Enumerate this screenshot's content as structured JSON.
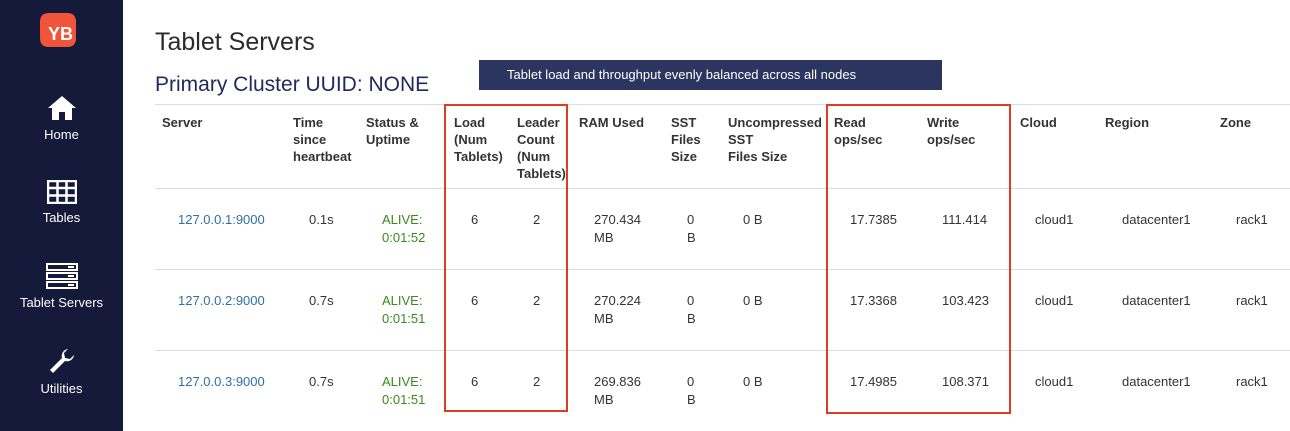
{
  "sidebar": {
    "logo_text": "YB",
    "items": [
      {
        "label": "Home",
        "icon": "home-icon"
      },
      {
        "label": "Tables",
        "icon": "table-icon"
      },
      {
        "label": "Tablet Servers",
        "icon": "server-icon"
      },
      {
        "label": "Utilities",
        "icon": "wrench-icon"
      }
    ]
  },
  "page": {
    "title": "Tablet Servers",
    "cluster_title": "Primary Cluster UUID: NONE",
    "banner": "Tablet load and throughput evenly balanced across all nodes"
  },
  "table": {
    "headers": {
      "server": "Server",
      "time": [
        "Time",
        "since",
        "heartbeat"
      ],
      "status": [
        "Status &",
        "Uptime"
      ],
      "load": [
        "Load",
        "(Num",
        "Tablets)"
      ],
      "leader": [
        "Leader",
        "Count",
        "(Num",
        "Tablets)"
      ],
      "ram": "RAM Used",
      "sst": [
        "SST",
        "Files",
        "Size"
      ],
      "usst": [
        "Uncompressed",
        "SST",
        "Files Size"
      ],
      "read": [
        "Read",
        "ops/sec"
      ],
      "write": [
        "Write",
        "ops/sec"
      ],
      "cloud": "Cloud",
      "region": "Region",
      "zone": "Zone"
    },
    "rows": [
      {
        "server": "127.0.0.1:9000",
        "time": "0.1s",
        "status": [
          "ALIVE:",
          "0:01:52"
        ],
        "load": "6",
        "leader": "2",
        "ram": [
          "270.434",
          "MB"
        ],
        "sst": [
          "0",
          "B"
        ],
        "usst": "0 B",
        "read": "17.7385",
        "write": "111.414",
        "cloud": "cloud1",
        "region": "datacenter1",
        "zone": "rack1"
      },
      {
        "server": "127.0.0.2:9000",
        "time": "0.7s",
        "status": [
          "ALIVE:",
          "0:01:51"
        ],
        "load": "6",
        "leader": "2",
        "ram": [
          "270.224",
          "MB"
        ],
        "sst": [
          "0",
          "B"
        ],
        "usst": "0 B",
        "read": "17.3368",
        "write": "103.423",
        "cloud": "cloud1",
        "region": "datacenter1",
        "zone": "rack1"
      },
      {
        "server": "127.0.0.3:9000",
        "time": "0.7s",
        "status": [
          "ALIVE:",
          "0:01:51"
        ],
        "load": "6",
        "leader": "2",
        "ram": [
          "269.836",
          "MB"
        ],
        "sst": [
          "0",
          "B"
        ],
        "usst": "0 B",
        "read": "17.4985",
        "write": "108.371",
        "cloud": "cloud1",
        "region": "datacenter1",
        "zone": "rack1"
      }
    ]
  },
  "colors": {
    "sidebar_bg": "#15193a",
    "logo": "#f0553a",
    "banner_bg": "#2b3560",
    "highlight": "#e23b24",
    "link": "#2f6ea8",
    "alive": "#3a8a1e"
  }
}
